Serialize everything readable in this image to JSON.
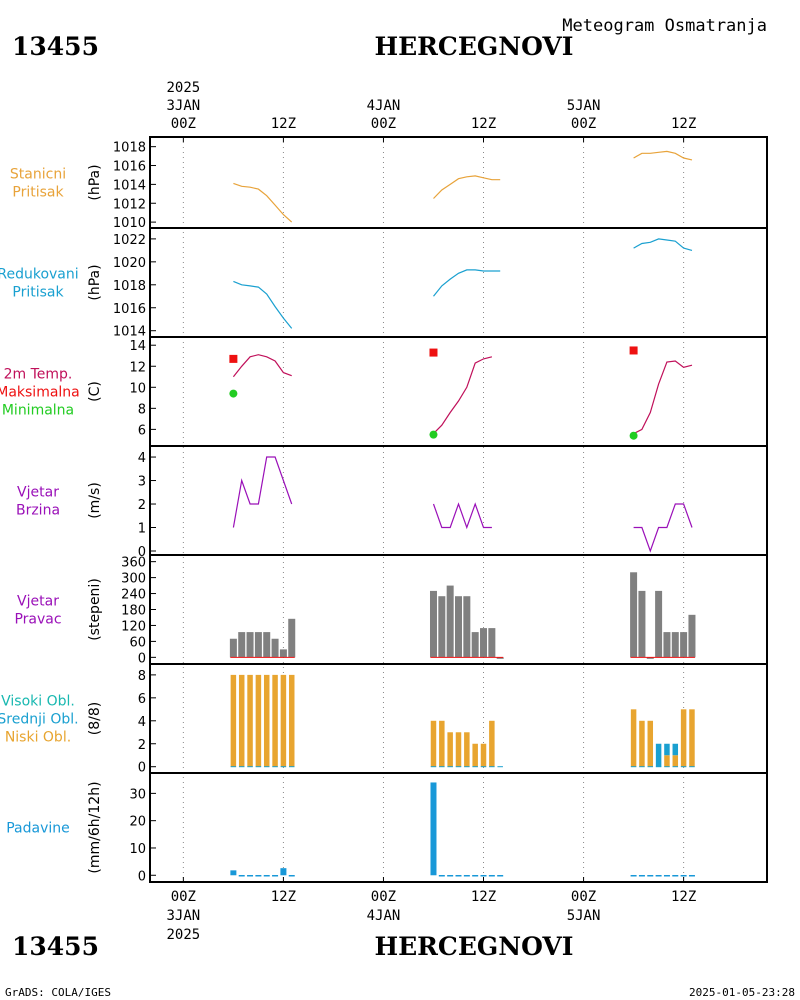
{
  "header": {
    "station_id": "13455",
    "station_name": "HERCEGNOVI",
    "product": "Meteogram Osmatranja"
  },
  "footer": {
    "credit": "GrADS: COLA/IGES",
    "timestamp": "2025-01-05-23:28"
  },
  "time_axis": {
    "year": "2025",
    "ticks": [
      {
        "hour": 0,
        "label": "00Z",
        "day": "3JAN",
        "year": "2025"
      },
      {
        "hour": 12,
        "label": "12Z"
      },
      {
        "hour": 24,
        "label": "00Z",
        "day": "4JAN"
      },
      {
        "hour": 36,
        "label": "12Z"
      },
      {
        "hour": 48,
        "label": "00Z",
        "day": "5JAN"
      },
      {
        "hour": 60,
        "label": "12Z"
      }
    ]
  },
  "colors": {
    "station_pressure": "#e8a33a",
    "reduced_pressure": "#1aa0d0",
    "temperature": "#c0105a",
    "tmax": "#ee1111",
    "tmin": "#22cc22",
    "wind": "#9a10b8",
    "wind_dir_bar": "#808080",
    "low_cloud": "#e8a530",
    "mid_cloud": "#1aa0d0",
    "high_cloud": "#18b8b0",
    "precip": "#1898d8"
  },
  "chart_data": [
    {
      "id": "station_pressure",
      "type": "line",
      "title": [
        "Stanicni",
        "Pritisak"
      ],
      "title_colors": [
        "#e8a33a",
        "#e8a33a"
      ],
      "ylabel": "(hPa)",
      "ylim": [
        1009.8,
        1018.6
      ],
      "yticks": [
        1010,
        1012,
        1014,
        1016,
        1018
      ],
      "series": [
        {
          "color": "#e8a33a",
          "segments": [
            [
              [
                6,
                1014.1
              ],
              [
                7,
                1013.8
              ],
              [
                8,
                1013.7
              ],
              [
                9,
                1013.5
              ],
              [
                10,
                1012.8
              ],
              [
                11,
                1011.8
              ],
              [
                12,
                1010.8
              ],
              [
                13,
                1010.0
              ]
            ],
            [
              [
                30,
                1012.5
              ],
              [
                31,
                1013.4
              ],
              [
                32,
                1014.0
              ],
              [
                33,
                1014.6
              ],
              [
                34,
                1014.8
              ],
              [
                35,
                1014.9
              ],
              [
                36,
                1014.7
              ],
              [
                37,
                1014.5
              ],
              [
                38,
                1014.5
              ]
            ],
            [
              [
                54,
                1016.8
              ],
              [
                55,
                1017.3
              ],
              [
                56,
                1017.3
              ],
              [
                57,
                1017.4
              ],
              [
                58,
                1017.5
              ],
              [
                59,
                1017.3
              ],
              [
                60,
                1016.8
              ],
              [
                61,
                1016.6
              ]
            ]
          ]
        }
      ]
    },
    {
      "id": "reduced_pressure",
      "type": "line",
      "title": [
        "Redukovani",
        "Pritisak"
      ],
      "title_colors": [
        "#1aa0d0",
        "#1aa0d0"
      ],
      "ylabel": "(hPa)",
      "ylim": [
        1013.8,
        1022.6
      ],
      "yticks": [
        1014,
        1016,
        1018,
        1020,
        1022
      ],
      "series": [
        {
          "color": "#1aa0d0",
          "segments": [
            [
              [
                6,
                1018.3
              ],
              [
                7,
                1018.0
              ],
              [
                8,
                1017.9
              ],
              [
                9,
                1017.8
              ],
              [
                10,
                1017.2
              ],
              [
                11,
                1016.1
              ],
              [
                12,
                1015.1
              ],
              [
                13,
                1014.2
              ]
            ],
            [
              [
                30,
                1017.0
              ],
              [
                31,
                1017.9
              ],
              [
                32,
                1018.5
              ],
              [
                33,
                1019.0
              ],
              [
                34,
                1019.3
              ],
              [
                35,
                1019.3
              ],
              [
                36,
                1019.2
              ],
              [
                37,
                1019.2
              ],
              [
                38,
                1019.2
              ]
            ],
            [
              [
                54,
                1021.2
              ],
              [
                55,
                1021.6
              ],
              [
                56,
                1021.7
              ],
              [
                57,
                1022.0
              ],
              [
                58,
                1021.9
              ],
              [
                59,
                1021.8
              ],
              [
                60,
                1021.2
              ],
              [
                61,
                1021.0
              ]
            ]
          ]
        }
      ]
    },
    {
      "id": "temperature",
      "type": "line",
      "title": [
        "2m Temp.",
        "Maksimalna",
        "Minimalna"
      ],
      "title_colors": [
        "#c0105a",
        "#ee1111",
        "#22cc22"
      ],
      "ylabel": "(C)",
      "ylim": [
        4.8,
        14.4
      ],
      "yticks": [
        6,
        8,
        10,
        12,
        14
      ],
      "series": [
        {
          "name": "2m Temp.",
          "color": "#c0105a",
          "segments": [
            [
              [
                6,
                11.0
              ],
              [
                7,
                12.0
              ],
              [
                8,
                12.9
              ],
              [
                9,
                13.1
              ],
              [
                10,
                12.9
              ],
              [
                11,
                12.5
              ],
              [
                12,
                11.4
              ],
              [
                13,
                11.1
              ]
            ],
            [
              [
                30,
                5.6
              ],
              [
                31,
                6.4
              ],
              [
                32,
                7.6
              ],
              [
                33,
                8.7
              ],
              [
                34,
                10.0
              ],
              [
                35,
                12.3
              ],
              [
                36,
                12.7
              ],
              [
                37,
                12.9
              ]
            ],
            [
              [
                54,
                5.6
              ],
              [
                55,
                6.0
              ],
              [
                56,
                7.6
              ],
              [
                57,
                10.3
              ],
              [
                58,
                12.4
              ],
              [
                59,
                12.5
              ],
              [
                60,
                11.9
              ],
              [
                61,
                12.1
              ]
            ]
          ]
        }
      ],
      "markers": [
        {
          "name": "Maksimalna",
          "shape": "square",
          "color": "#ee1111",
          "points": [
            [
              6,
              12.7
            ],
            [
              30,
              13.3
            ],
            [
              54,
              13.5
            ]
          ]
        },
        {
          "name": "Minimalna",
          "shape": "circle",
          "color": "#22cc22",
          "points": [
            [
              6,
              9.4
            ],
            [
              30,
              5.5
            ],
            [
              54,
              5.4
            ]
          ]
        }
      ]
    },
    {
      "id": "wind_speed",
      "type": "line",
      "title": [
        "Vjetar",
        "Brzina"
      ],
      "title_colors": [
        "#9a10b8",
        "#9a10b8"
      ],
      "ylabel": "(m/s)",
      "ylim": [
        0,
        4.3
      ],
      "yticks": [
        0,
        1,
        2,
        3,
        4
      ],
      "series": [
        {
          "color": "#9a10b8",
          "segments": [
            [
              [
                6,
                1
              ],
              [
                7,
                3
              ],
              [
                8,
                2
              ],
              [
                9,
                2
              ],
              [
                10,
                4
              ],
              [
                11,
                4
              ],
              [
                12,
                3
              ],
              [
                13,
                2
              ]
            ],
            [
              [
                30,
                2
              ],
              [
                31,
                1
              ],
              [
                32,
                1
              ],
              [
                33,
                2
              ],
              [
                34,
                1
              ],
              [
                35,
                2
              ],
              [
                36,
                1
              ],
              [
                37,
                1
              ]
            ],
            [
              [
                54,
                1
              ],
              [
                55,
                1
              ],
              [
                56,
                0
              ],
              [
                57,
                1
              ],
              [
                58,
                1
              ],
              [
                59,
                2
              ],
              [
                60,
                2
              ],
              [
                61,
                1
              ]
            ]
          ]
        }
      ]
    },
    {
      "id": "wind_direction",
      "type": "bar",
      "title": [
        "Vjetar",
        "Pravac"
      ],
      "title_colors": [
        "#9a10b8",
        "#9a10b8"
      ],
      "ylabel": "(stepeni)",
      "ylim": [
        -10,
        370
      ],
      "yticks": [
        0,
        60,
        120,
        180,
        240,
        300,
        360
      ],
      "x": [
        6,
        7,
        8,
        9,
        10,
        11,
        12,
        13,
        30,
        31,
        32,
        33,
        34,
        35,
        36,
        37,
        38,
        54,
        55,
        56,
        57,
        58,
        59,
        60,
        61
      ],
      "values": [
        70,
        95,
        95,
        95,
        95,
        70,
        30,
        145,
        250,
        230,
        270,
        230,
        230,
        95,
        110,
        110,
        0,
        320,
        250,
        0,
        250,
        95,
        95,
        95,
        160
      ],
      "color": "#808080",
      "baseline_color": "#ee1111"
    },
    {
      "id": "clouds",
      "type": "bar",
      "title": [
        "Visoki Obl.",
        "Srednji Obl.",
        "Niski Obl."
      ],
      "title_colors": [
        "#18b8b0",
        "#1aa0d0",
        "#e8a530"
      ],
      "ylabel": "(8/8)",
      "ylim": [
        -0.2,
        8.6
      ],
      "yticks": [
        0,
        2,
        4,
        6,
        8
      ],
      "x": [
        6,
        7,
        8,
        9,
        10,
        11,
        12,
        13,
        30,
        31,
        32,
        33,
        34,
        35,
        36,
        37,
        38,
        54,
        55,
        56,
        57,
        58,
        59,
        60,
        61
      ],
      "series": [
        {
          "name": "Niski Obl.",
          "color": "#e8a530",
          "values": [
            8,
            8,
            8,
            8,
            8,
            8,
            8,
            8,
            4,
            4,
            3,
            3,
            3,
            2,
            2,
            4,
            0,
            5,
            4,
            4,
            0,
            1,
            1,
            5,
            5
          ]
        },
        {
          "name": "Srednji Obl.",
          "color": "#1aa0d0",
          "values": [
            0,
            0,
            0,
            0,
            0,
            0,
            0,
            0,
            0,
            0,
            0,
            0,
            0,
            0,
            0,
            0,
            0,
            0,
            0,
            0,
            2,
            1,
            1,
            0,
            0
          ]
        },
        {
          "name": "Visoki Obl.",
          "color": "#18b8b0",
          "values": [
            0,
            0,
            0,
            0,
            0,
            0,
            0,
            0,
            0,
            0,
            0,
            0,
            0,
            0,
            0,
            0,
            0,
            0,
            0,
            0,
            0,
            0,
            0,
            0,
            0
          ]
        }
      ]
    },
    {
      "id": "precipitation",
      "type": "bar",
      "title": [
        "Padavine"
      ],
      "title_colors": [
        "#1898d8"
      ],
      "ylabel": "(mm/6h/12h)",
      "ylim": [
        -1,
        36
      ],
      "yticks": [
        0,
        10,
        20,
        30
      ],
      "x": [
        6,
        7,
        8,
        9,
        10,
        11,
        12,
        13,
        30,
        31,
        32,
        33,
        34,
        35,
        36,
        37,
        38,
        54,
        55,
        56,
        57,
        58,
        59,
        60,
        61
      ],
      "values": [
        1.8,
        0.1,
        0.1,
        0.1,
        0.1,
        0.1,
        2.6,
        0.1,
        34,
        0.1,
        0.1,
        0.1,
        0.1,
        0.1,
        0.1,
        0.1,
        0.1,
        0.1,
        0.1,
        0.1,
        0.1,
        0.1,
        0.1,
        0.1,
        0.1
      ],
      "color": "#1898d8"
    }
  ]
}
